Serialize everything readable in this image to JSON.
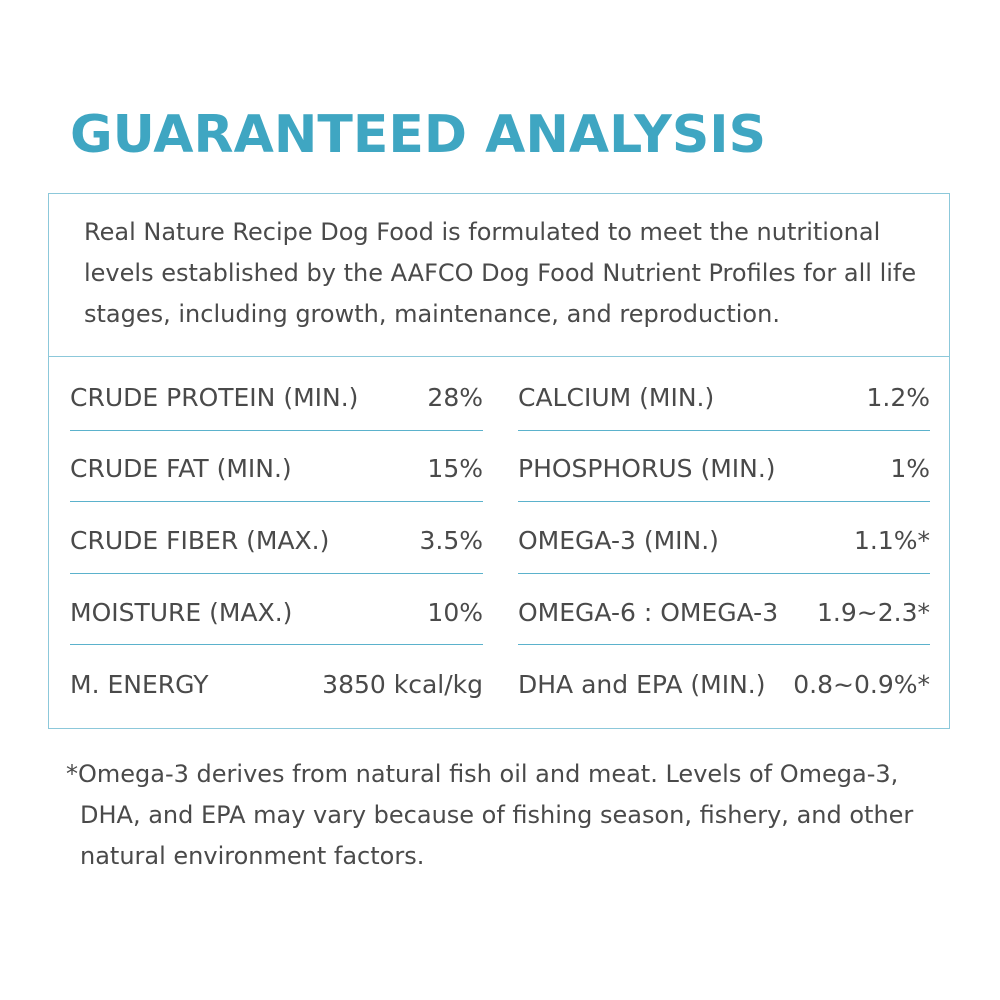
{
  "title": "GUARANTEED ANALYSIS",
  "intro": "Real Nature Recipe Dog Food is formulated to meet the nutritional levels established by the AAFCO Dog Food Nutrient Profiles for all life stages, including growth, maintenance, and reproduction.",
  "left_rows": [
    {
      "label": "CRUDE PROTEIN (MIN.)",
      "value": "28%"
    },
    {
      "label": "CRUDE FAT (MIN.)",
      "value": "15%"
    },
    {
      "label": "CRUDE FIBER (MAX.)",
      "value": "3.5%"
    },
    {
      "label": "MOISTURE (MAX.)",
      "value": "10%"
    },
    {
      "label": "M. ENERGY",
      "value": "3850 kcal/kg"
    }
  ],
  "right_rows": [
    {
      "label": "CALCIUM (MIN.)",
      "value": "1.2%"
    },
    {
      "label": "PHOSPHORUS (MIN.)",
      "value": "1%"
    },
    {
      "label": "OMEGA-3 (MIN.)",
      "value": "1.1%*"
    },
    {
      "label": "OMEGA-6 : OMEGA-3",
      "value": "1.9~2.3*"
    },
    {
      "label": "DHA and EPA (MIN.)",
      "value": "0.8~0.9%*"
    }
  ],
  "footnote": "*Omega-3 derives from natural fish oil and meat. Levels of Omega-3, DHA, and EPA may vary because of fishing season, fishery, and other natural environment factors.",
  "colors": {
    "accent": "#3fa6c2",
    "border": "#8cc8da",
    "text": "#4a4a4a"
  }
}
